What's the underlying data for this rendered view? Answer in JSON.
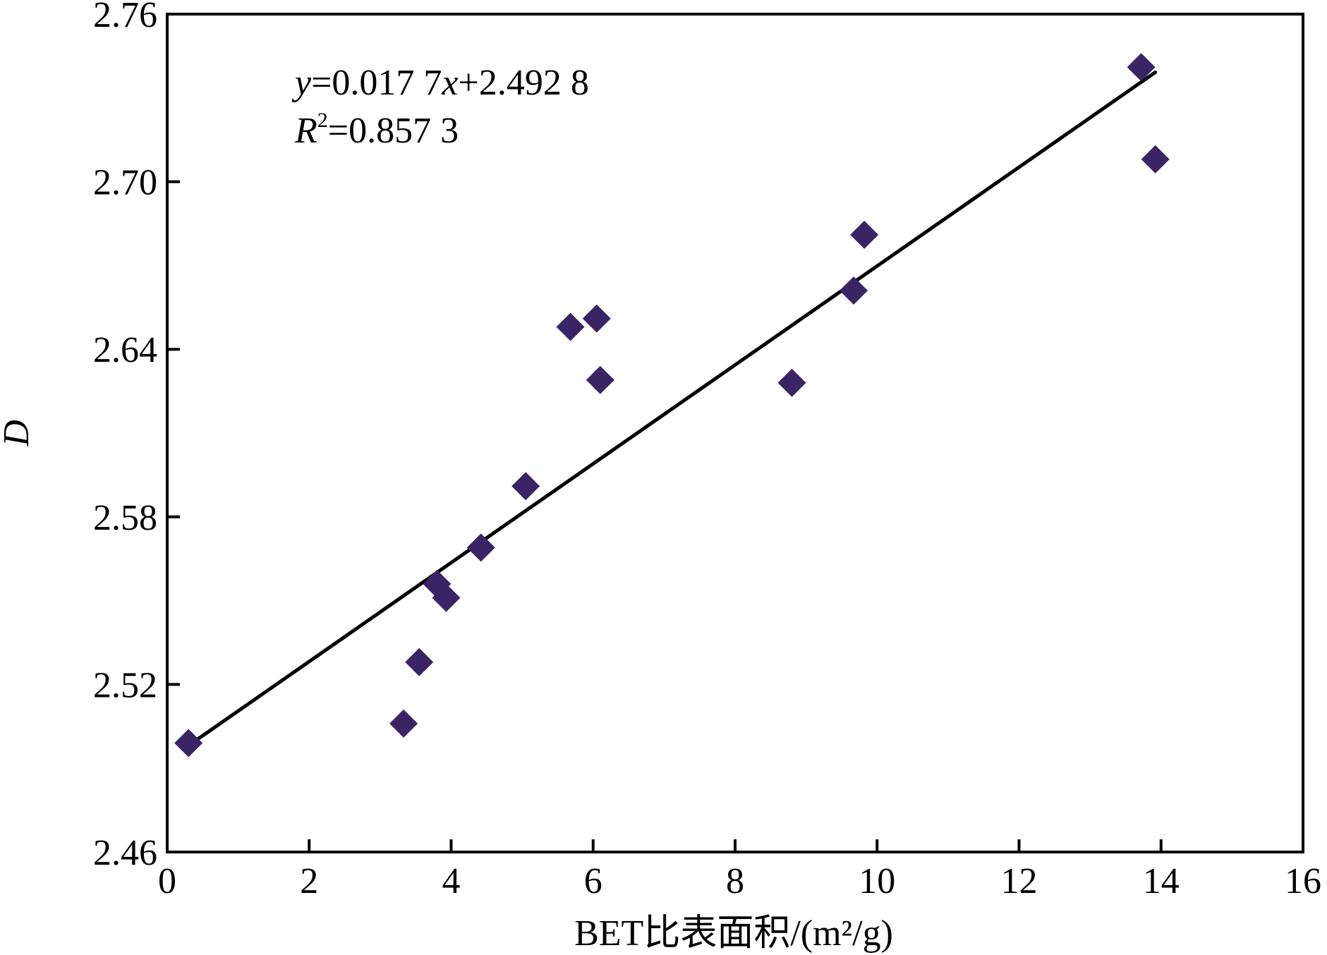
{
  "chart_data": {
    "type": "scatter",
    "xlabel": "BET比表面积/(m²/g)",
    "ylabel": "D",
    "xlim": [
      0,
      16
    ],
    "ylim": [
      2.46,
      2.76
    ],
    "x_ticks": [
      0,
      2,
      4,
      6,
      8,
      10,
      12,
      14,
      16
    ],
    "y_ticks": [
      2.46,
      2.52,
      2.58,
      2.64,
      2.7,
      2.76
    ],
    "x_tick_labels": [
      "0",
      "2",
      "4",
      "6",
      "8",
      "10",
      "12",
      "14",
      "16"
    ],
    "y_tick_labels": [
      "2.46",
      "2.52",
      "2.58",
      "2.64",
      "2.70",
      "2.76"
    ],
    "grid": false,
    "marker": "diamond",
    "marker_color": "#3b2466",
    "line_color": "#000000",
    "points": [
      {
        "x": 0.3,
        "y": 2.499
      },
      {
        "x": 3.33,
        "y": 2.506
      },
      {
        "x": 3.55,
        "y": 2.528
      },
      {
        "x": 3.8,
        "y": 2.556
      },
      {
        "x": 3.93,
        "y": 2.551
      },
      {
        "x": 4.42,
        "y": 2.569
      },
      {
        "x": 5.05,
        "y": 2.591
      },
      {
        "x": 5.68,
        "y": 2.648
      },
      {
        "x": 6.05,
        "y": 2.651
      },
      {
        "x": 6.1,
        "y": 2.629
      },
      {
        "x": 8.8,
        "y": 2.628
      },
      {
        "x": 9.67,
        "y": 2.661
      },
      {
        "x": 9.82,
        "y": 2.681
      },
      {
        "x": 13.72,
        "y": 2.741
      },
      {
        "x": 13.92,
        "y": 2.708
      }
    ],
    "fit_line": {
      "slope": 0.0177,
      "intercept": 2.4928,
      "x_range": [
        0.3,
        13.92
      ]
    },
    "annotation": {
      "equation": {
        "y_var": "y",
        "eq1": "=0.017 7",
        "x_var": "x",
        "eq2": "+2.492 8"
      },
      "r2": {
        "var": "R",
        "exp": "2",
        "value": "=0.857 3"
      }
    }
  }
}
